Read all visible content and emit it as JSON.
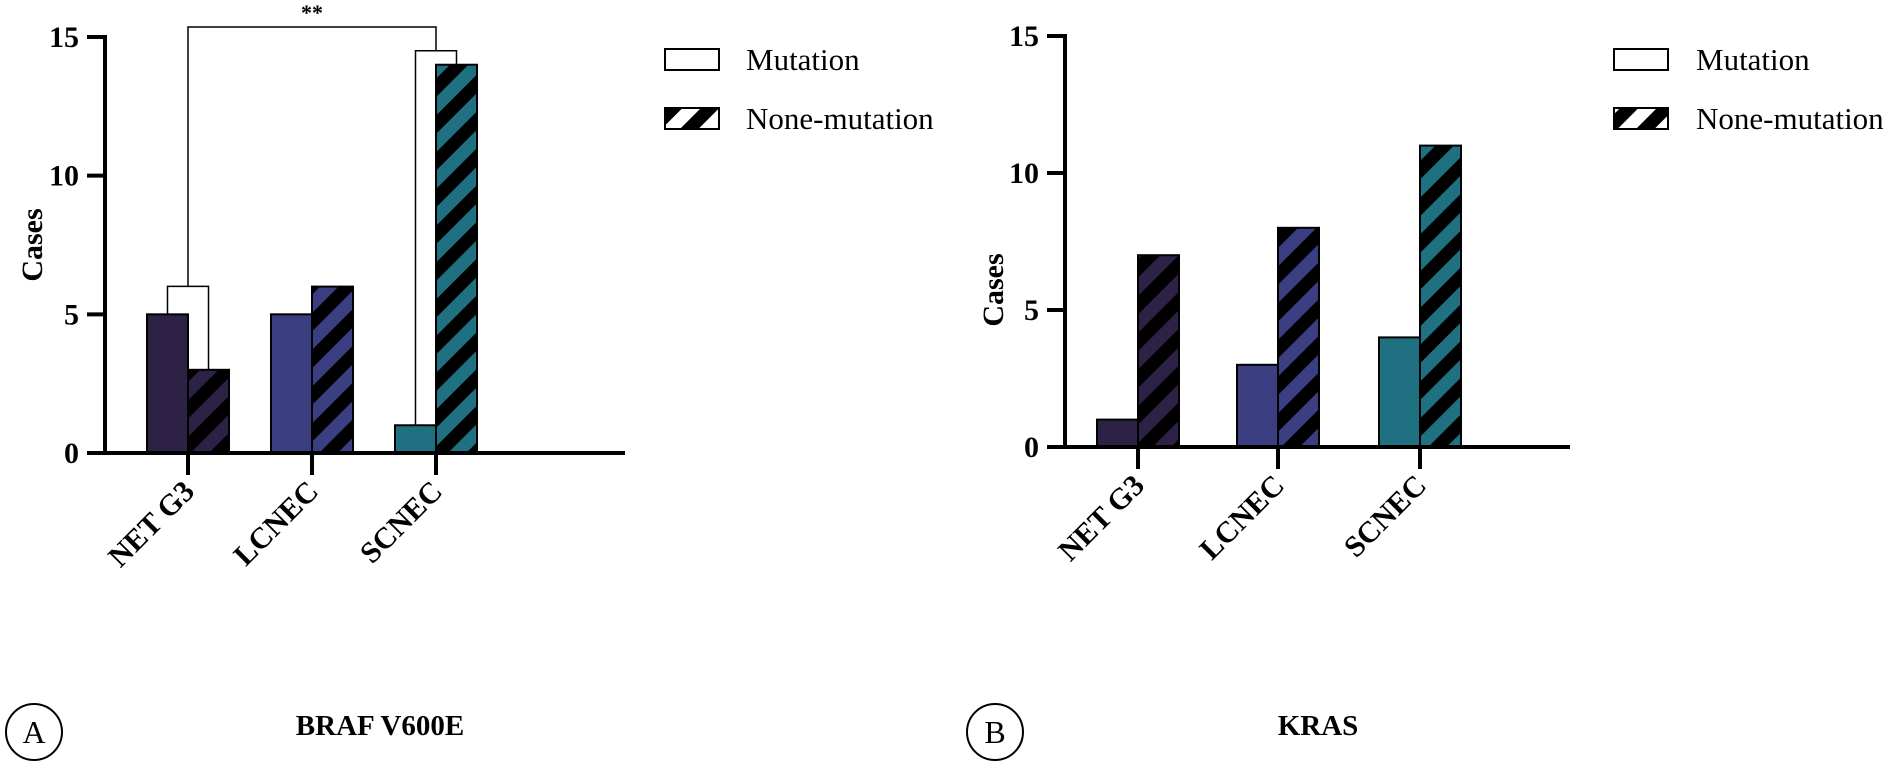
{
  "colors": {
    "net_g3": "#2e2146",
    "lcnec": "#3b3f82",
    "scnec": "#1f7182",
    "hatch": "#000000",
    "axis": "#000000"
  },
  "legend": {
    "mutation_label": "Mutation",
    "none_mutation_label": "None-mutation"
  },
  "panels": [
    {
      "letter": "A",
      "xlabel": "BRAF V600E",
      "significance": "**"
    },
    {
      "letter": "B",
      "xlabel": "KRAS"
    }
  ],
  "chart_data": [
    {
      "type": "bar",
      "title": "",
      "xlabel": "BRAF V600E",
      "ylabel": "Cases",
      "categories": [
        "NET G3",
        "LCNEC",
        "SCNEC"
      ],
      "series": [
        {
          "name": "Mutation",
          "values": [
            5,
            5,
            1
          ]
        },
        {
          "name": "None-mutation",
          "values": [
            3,
            6,
            14
          ]
        }
      ],
      "ylim": [
        0,
        15
      ],
      "yticks": [
        0,
        5,
        10,
        15
      ],
      "annotations": [
        {
          "text": "**",
          "between": [
            "NET G3",
            "SCNEC"
          ]
        }
      ],
      "legend_position": "top-right",
      "grid": false
    },
    {
      "type": "bar",
      "title": "",
      "xlabel": "KRAS",
      "ylabel": "Cases",
      "categories": [
        "NET G3",
        "LCNEC",
        "SCNEC"
      ],
      "series": [
        {
          "name": "Mutation",
          "values": [
            1,
            3,
            4
          ]
        },
        {
          "name": "None-mutation",
          "values": [
            7,
            8,
            11
          ]
        }
      ],
      "ylim": [
        0,
        15
      ],
      "yticks": [
        0,
        5,
        10,
        15
      ],
      "legend_position": "top-right",
      "grid": false
    }
  ]
}
